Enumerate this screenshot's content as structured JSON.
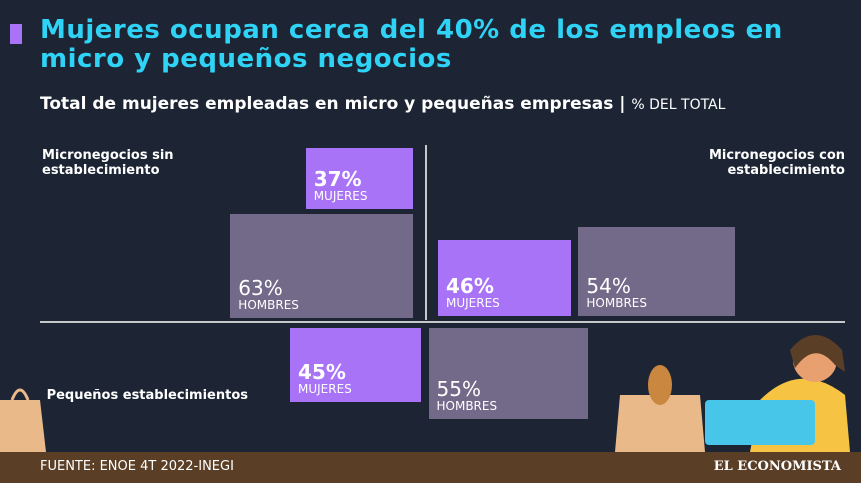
{
  "chart_data": {
    "type": "proportional-box",
    "title": "Mujeres ocupan cerca del 40% de los empleos en micro y pequeños negocios",
    "subtitle": "Total de mujeres empleadas en micro y pequeñas empresas",
    "unit": "% DEL TOTAL",
    "series": [
      {
        "name": "MUJERES",
        "color": "#a873f7"
      },
      {
        "name": "HOMBRES",
        "color": "#736a8a"
      }
    ],
    "groups": [
      {
        "name": "Micronegocios sin establecimiento",
        "values": [
          37,
          63
        ],
        "value_labels": [
          "37%",
          "63%"
        ]
      },
      {
        "name": "Micronegocios con establecimiento",
        "values": [
          46,
          54
        ],
        "value_labels": [
          "46%",
          "54%"
        ]
      },
      {
        "name": "Pequeños establecimientos",
        "values": [
          45,
          55
        ],
        "value_labels": [
          "45%",
          "55%"
        ]
      }
    ]
  },
  "footer": {
    "source": "FUENTE: ENOE 4T 2022-INEGI",
    "brand": "EL ECONOMISTA"
  }
}
